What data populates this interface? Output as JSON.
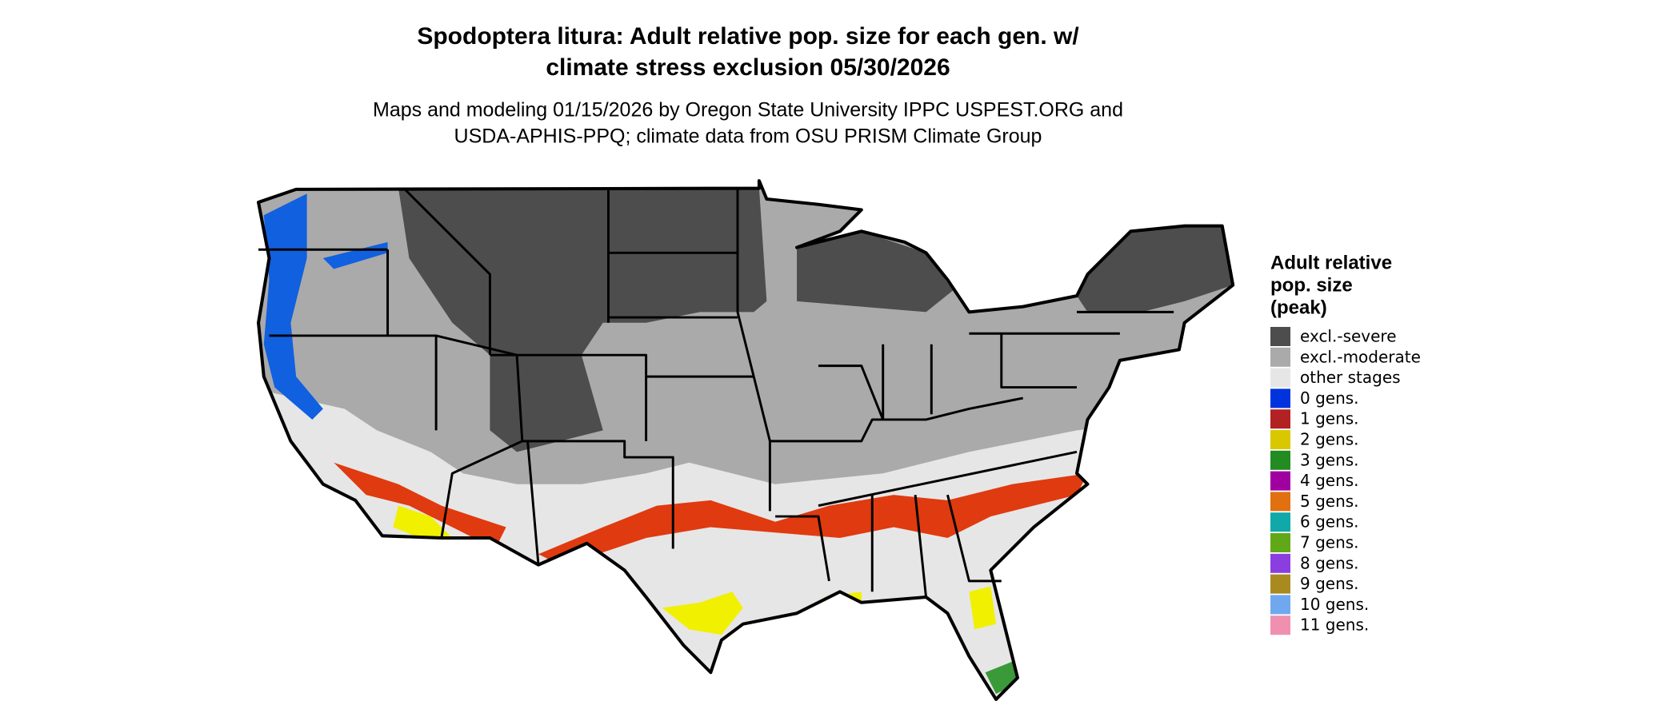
{
  "title_lines": [
    "Spodoptera litura: Adult relative pop. size for each gen. w/",
    "climate stress exclusion 05/30/2026"
  ],
  "subtitle_lines": [
    "Maps and modeling 01/15/2026 by Oregon State University IPPC USPEST.ORG and",
    "USDA-APHIS-PPQ; climate data from OSU PRISM Climate Group"
  ],
  "legend": {
    "title_lines": [
      "Adult relative",
      "pop. size",
      "(peak)"
    ],
    "items": [
      {
        "label": "excl.-severe",
        "color": "#4d4d4d"
      },
      {
        "label": "excl.-moderate",
        "color": "#aaaaaa"
      },
      {
        "label": "other stages",
        "color": "#e6e6e6"
      },
      {
        "label": "0 gens.",
        "color": "#0033dd"
      },
      {
        "label": "1 gens.",
        "color": "#b22222"
      },
      {
        "label": "2 gens.",
        "color": "#d9c800"
      },
      {
        "label": "3 gens.",
        "color": "#228b22"
      },
      {
        "label": "4 gens.",
        "color": "#a000a0"
      },
      {
        "label": "5 gens.",
        "color": "#e07010"
      },
      {
        "label": "6 gens.",
        "color": "#10a8a8"
      },
      {
        "label": "7 gens.",
        "color": "#60a818"
      },
      {
        "label": "8 gens.",
        "color": "#8b3ee0"
      },
      {
        "label": "9 gens.",
        "color": "#a88a20"
      },
      {
        "label": "10 gens.",
        "color": "#70a8f0"
      },
      {
        "label": "11 gens.",
        "color": "#f090b0"
      }
    ]
  }
}
